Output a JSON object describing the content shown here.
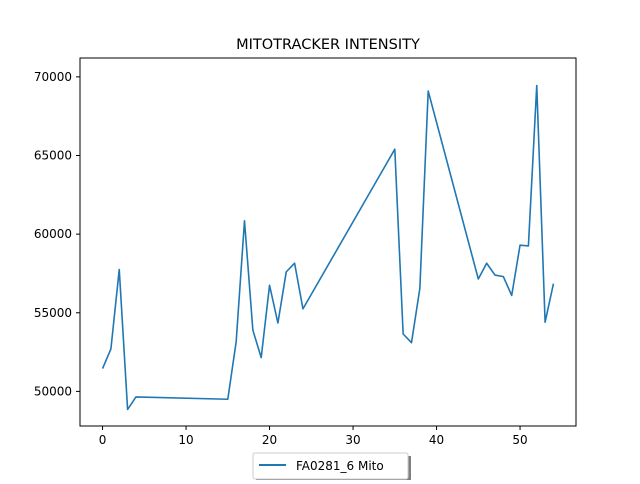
{
  "chart_data": {
    "type": "line",
    "title": "MITOTRACKER INTENSITY",
    "xlabel": "",
    "ylabel": "",
    "xlim": [
      -2.7,
      56.7
    ],
    "ylim": [
      47800,
      71200
    ],
    "grid": false,
    "legend_position": "bottom-center",
    "x_ticks": [
      0,
      10,
      20,
      30,
      40,
      50
    ],
    "y_ticks": [
      50000,
      55000,
      60000,
      65000,
      70000
    ],
    "x_tick_labels": [
      "0",
      "10",
      "20",
      "30",
      "40",
      "50"
    ],
    "y_tick_labels": [
      "50000",
      "55000",
      "60000",
      "65000",
      "70000"
    ],
    "series": [
      {
        "name": "FA0281_6 Mito",
        "color": "#1f77b4",
        "x": [
          0,
          1,
          2,
          3,
          4,
          15,
          16,
          17,
          18,
          19,
          20,
          21,
          22,
          23,
          24,
          35,
          36,
          37,
          38,
          39,
          45,
          46,
          47,
          48,
          49,
          50,
          51,
          52,
          53,
          54
        ],
        "y": [
          51450,
          52700,
          57750,
          48850,
          49650,
          49500,
          53150,
          60850,
          53900,
          52150,
          56750,
          54350,
          57600,
          58150,
          55250,
          65400,
          53650,
          53100,
          56550,
          69100,
          57150,
          58150,
          57400,
          57300,
          56100,
          59300,
          59250,
          69450,
          54400,
          56850
        ]
      }
    ]
  }
}
